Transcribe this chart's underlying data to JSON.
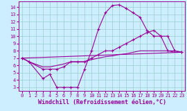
{
  "bg_color": "#cceeff",
  "line_color": "#990099",
  "grid_color": "#99cccc",
  "xlabel": "Windchill (Refroidissement éolien,°C)",
  "xlabel_fontsize": 6,
  "ylabel_ticks": [
    3,
    4,
    5,
    6,
    7,
    8,
    9,
    10,
    11,
    12,
    13,
    14
  ],
  "xlim": [
    -0.5,
    23.5
  ],
  "ylim": [
    2.5,
    14.8
  ],
  "xticks": [
    0,
    1,
    2,
    3,
    4,
    5,
    6,
    7,
    8,
    9,
    10,
    11,
    12,
    13,
    14,
    15,
    16,
    17,
    18,
    19,
    20,
    21,
    22,
    23
  ],
  "line1_x": [
    0,
    1,
    3,
    4,
    5,
    6,
    7,
    8,
    9,
    10,
    11,
    12,
    13,
    14,
    15,
    16,
    17,
    18,
    19,
    20,
    21,
    22,
    23
  ],
  "line1_y": [
    7.0,
    6.5,
    4.2,
    4.8,
    3.0,
    3.0,
    3.0,
    3.0,
    5.5,
    8.0,
    11.0,
    13.2,
    14.2,
    14.3,
    13.8,
    13.2,
    12.6,
    10.8,
    10.0,
    10.0,
    8.0,
    8.0,
    7.8
  ],
  "line2_x": [
    0,
    1,
    3,
    4,
    5,
    6,
    7,
    8,
    9,
    10,
    11,
    12,
    13,
    14,
    15,
    16,
    17,
    18,
    19,
    20,
    21,
    22,
    23
  ],
  "line2_y": [
    7.0,
    6.5,
    5.5,
    5.5,
    5.5,
    5.8,
    6.5,
    6.5,
    6.5,
    7.0,
    7.5,
    8.0,
    8.0,
    8.5,
    9.0,
    9.5,
    10.0,
    10.5,
    10.8,
    10.0,
    10.0,
    8.0,
    7.8
  ],
  "line3_x": [
    0,
    1,
    3,
    4,
    5,
    6,
    7,
    8,
    9,
    10,
    11,
    12,
    13,
    14,
    15,
    16,
    17,
    18,
    19,
    20,
    21,
    22,
    23
  ],
  "line3_y": [
    7.0,
    6.5,
    5.8,
    5.8,
    6.0,
    6.2,
    6.5,
    6.5,
    6.5,
    6.8,
    7.0,
    7.2,
    7.3,
    7.5,
    7.6,
    7.8,
    8.0,
    8.0,
    8.0,
    8.0,
    8.0,
    7.8,
    7.8
  ],
  "line4_x": [
    0,
    23
  ],
  "line4_y": [
    7.0,
    7.8
  ]
}
